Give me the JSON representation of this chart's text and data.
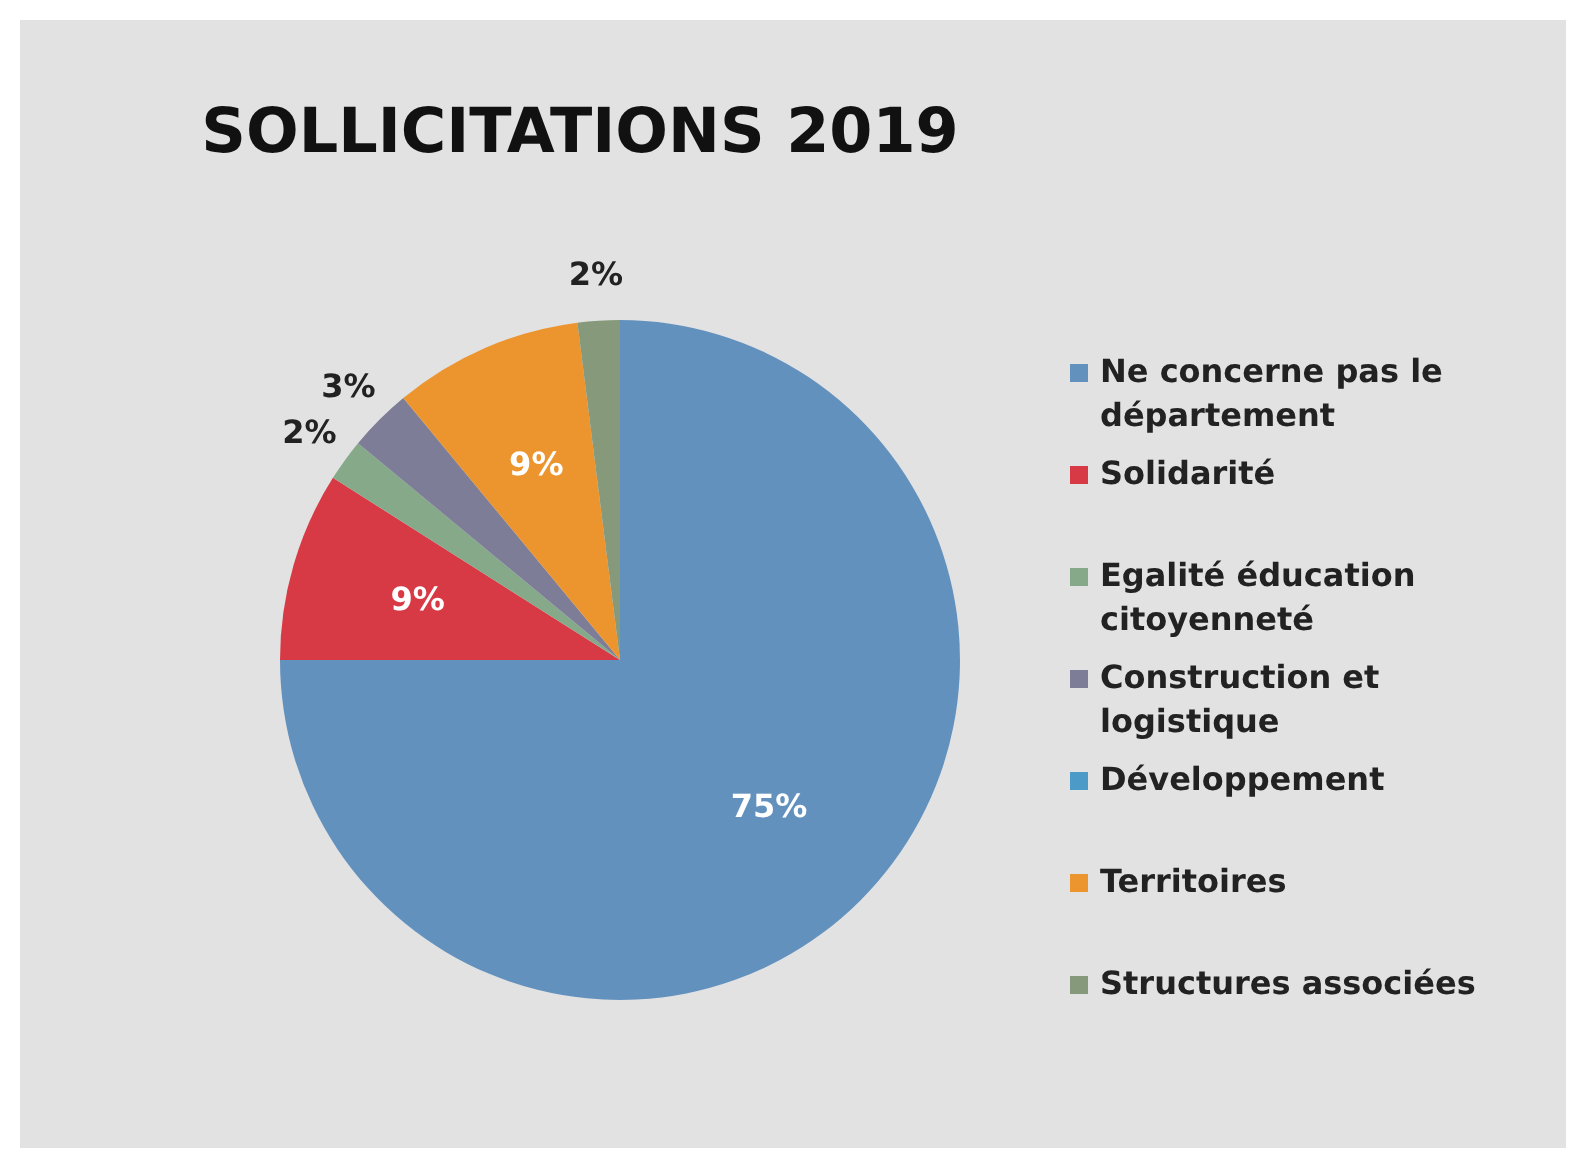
{
  "chart_data": {
    "type": "pie",
    "title": "SOLLICITATIONS 2019",
    "categories": [
      "Ne concerne pas le département",
      "Solidarité",
      "Egalité éducation citoyenneté",
      "Construction et logistique",
      "Développement",
      "Territoires",
      "Structures associées"
    ],
    "values": [
      75,
      9,
      2,
      3,
      0,
      9,
      2
    ],
    "colors": [
      "#6391bd",
      "#d83a45",
      "#86a98a",
      "#7e7d98",
      "#4b9ac8",
      "#ec952e",
      "#86997a"
    ],
    "value_labels": [
      "75%",
      "9%",
      "2%",
      "3%",
      null,
      "9%",
      "2%"
    ],
    "legend": "right"
  }
}
